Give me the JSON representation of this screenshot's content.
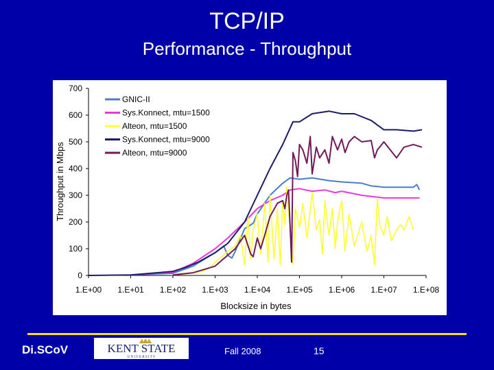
{
  "slide": {
    "title": "TCP/IP",
    "subtitle": "Performance - Throughput"
  },
  "footer": {
    "logo_text": "Di.SCoV",
    "date": "Fall 2008",
    "page_number": "15",
    "kent_logo_text": "KENT STATE",
    "kent_logo_subtext": "U N I V E R S I T Y"
  },
  "chart_data": {
    "type": "line",
    "xlabel": "Blocksize in bytes",
    "ylabel": "Throughput in Mbps",
    "x_scale": "log",
    "xlim": [
      1,
      100000000
    ],
    "ylim": [
      0,
      700
    ],
    "x_ticks": [
      1,
      10,
      100,
      1000,
      10000,
      100000,
      1000000,
      10000000,
      100000000
    ],
    "x_tick_labels": [
      "1.E+00",
      "1.E+01",
      "1.E+02",
      "1.E+03",
      "1.E+04",
      "1.E+05",
      "1.E+06",
      "1.E+07",
      "1.E+08"
    ],
    "y_ticks": [
      0,
      100,
      200,
      300,
      400,
      500,
      600,
      700
    ],
    "y_tick_labels": [
      "0",
      "100",
      "200",
      "300",
      "400",
      "500",
      "600",
      "700"
    ],
    "grid": false,
    "legend_position": "top-left",
    "series": [
      {
        "name": "GNIC-II",
        "color": "#4a7cc8",
        "points": [
          [
            10,
            2
          ],
          [
            100,
            8
          ],
          [
            300,
            35
          ],
          [
            1000,
            85
          ],
          [
            1600,
            110
          ],
          [
            2000,
            75
          ],
          [
            2500,
            65
          ],
          [
            3000,
            90
          ],
          [
            5000,
            175
          ],
          [
            8000,
            195
          ],
          [
            10000,
            230
          ],
          [
            20000,
            300
          ],
          [
            40000,
            345
          ],
          [
            60000,
            365
          ],
          [
            100000,
            360
          ],
          [
            200000,
            365
          ],
          [
            500000,
            355
          ],
          [
            1000000,
            350
          ],
          [
            3000000,
            345
          ],
          [
            5000000,
            335
          ],
          [
            10000000,
            330
          ],
          [
            30000000,
            330
          ],
          [
            50000000,
            330
          ],
          [
            60000000,
            340
          ],
          [
            70000000,
            320
          ]
        ]
      },
      {
        "name": "Sys.Konnect, mtu=1500",
        "color": "#e63ad8",
        "points": [
          [
            10,
            2
          ],
          [
            100,
            12
          ],
          [
            300,
            45
          ],
          [
            1000,
            100
          ],
          [
            2000,
            140
          ],
          [
            5000,
            200
          ],
          [
            10000,
            250
          ],
          [
            20000,
            280
          ],
          [
            40000,
            300
          ],
          [
            60000,
            320
          ],
          [
            100000,
            325
          ],
          [
            200000,
            315
          ],
          [
            400000,
            320
          ],
          [
            700000,
            310
          ],
          [
            1000000,
            315
          ],
          [
            3000000,
            300
          ],
          [
            10000000,
            290
          ],
          [
            30000000,
            290
          ],
          [
            70000000,
            290
          ]
        ]
      },
      {
        "name": "Alteon, mtu=1500",
        "color": "#ffff30",
        "points": [
          [
            100,
            2
          ],
          [
            200,
            5
          ],
          [
            500,
            15
          ],
          [
            800,
            30
          ],
          [
            1000,
            50
          ],
          [
            2000,
            90
          ],
          [
            3000,
            110
          ],
          [
            4000,
            150
          ],
          [
            5000,
            40
          ],
          [
            6000,
            220
          ],
          [
            7000,
            60
          ],
          [
            8000,
            170
          ],
          [
            10000,
            230
          ],
          [
            12000,
            80
          ],
          [
            15000,
            270
          ],
          [
            18000,
            50
          ],
          [
            20000,
            300
          ],
          [
            25000,
            60
          ],
          [
            30000,
            250
          ],
          [
            35000,
            40
          ],
          [
            40000,
            280
          ],
          [
            45000,
            190
          ],
          [
            50000,
            330
          ],
          [
            60000,
            170
          ],
          [
            70000,
            40
          ],
          [
            80000,
            250
          ],
          [
            100000,
            180
          ],
          [
            120000,
            270
          ],
          [
            150000,
            140
          ],
          [
            200000,
            310
          ],
          [
            250000,
            170
          ],
          [
            300000,
            210
          ],
          [
            350000,
            80
          ],
          [
            400000,
            280
          ],
          [
            500000,
            150
          ],
          [
            600000,
            250
          ],
          [
            700000,
            100
          ],
          [
            800000,
            200
          ],
          [
            1000000,
            280
          ],
          [
            1200000,
            90
          ],
          [
            1500000,
            230
          ],
          [
            2000000,
            110
          ],
          [
            3000000,
            200
          ],
          [
            4000000,
            90
          ],
          [
            5000000,
            150
          ],
          [
            6000000,
            40
          ],
          [
            7000000,
            290
          ],
          [
            8000000,
            190
          ],
          [
            10000000,
            150
          ],
          [
            12000000,
            220
          ],
          [
            15000000,
            130
          ],
          [
            20000000,
            170
          ],
          [
            25000000,
            190
          ],
          [
            30000000,
            170
          ],
          [
            40000000,
            220
          ],
          [
            50000000,
            170
          ]
        ]
      },
      {
        "name": "Sys.Konnect, mtu=9000",
        "color": "#1a1a6a",
        "points": [
          [
            1,
            0
          ],
          [
            10,
            2
          ],
          [
            100,
            15
          ],
          [
            200,
            30
          ],
          [
            400,
            50
          ],
          [
            1000,
            85
          ],
          [
            2000,
            120
          ],
          [
            5000,
            200
          ],
          [
            10000,
            300
          ],
          [
            20000,
            400
          ],
          [
            40000,
            490
          ],
          [
            70000,
            575
          ],
          [
            100000,
            575
          ],
          [
            200000,
            605
          ],
          [
            500000,
            615
          ],
          [
            1000000,
            605
          ],
          [
            2000000,
            605
          ],
          [
            5000000,
            580
          ],
          [
            10000000,
            545
          ],
          [
            20000000,
            545
          ],
          [
            50000000,
            540
          ],
          [
            80000000,
            545
          ]
        ]
      },
      {
        "name": "Alteon, mtu=9000",
        "color": "#701a5a",
        "points": [
          [
            100,
            2
          ],
          [
            300,
            10
          ],
          [
            1000,
            35
          ],
          [
            3000,
            100
          ],
          [
            5000,
            150
          ],
          [
            7000,
            80
          ],
          [
            8000,
            70
          ],
          [
            10000,
            140
          ],
          [
            12000,
            100
          ],
          [
            15000,
            150
          ],
          [
            20000,
            220
          ],
          [
            30000,
            270
          ],
          [
            40000,
            280
          ],
          [
            45000,
            250
          ],
          [
            50000,
            300
          ],
          [
            55000,
            320
          ],
          [
            60000,
            180
          ],
          [
            65000,
            50
          ],
          [
            70000,
            460
          ],
          [
            80000,
            430
          ],
          [
            90000,
            370
          ],
          [
            100000,
            490
          ],
          [
            120000,
            470
          ],
          [
            150000,
            420
          ],
          [
            180000,
            520
          ],
          [
            200000,
            380
          ],
          [
            250000,
            480
          ],
          [
            300000,
            440
          ],
          [
            400000,
            470
          ],
          [
            500000,
            420
          ],
          [
            600000,
            520
          ],
          [
            800000,
            470
          ],
          [
            1000000,
            510
          ],
          [
            1200000,
            460
          ],
          [
            1500000,
            500
          ],
          [
            2000000,
            520
          ],
          [
            3000000,
            500
          ],
          [
            5000000,
            505
          ],
          [
            6000000,
            440
          ],
          [
            7000000,
            470
          ],
          [
            10000000,
            500
          ],
          [
            20000000,
            440
          ],
          [
            30000000,
            480
          ],
          [
            50000000,
            490
          ],
          [
            80000000,
            480
          ]
        ]
      }
    ]
  }
}
